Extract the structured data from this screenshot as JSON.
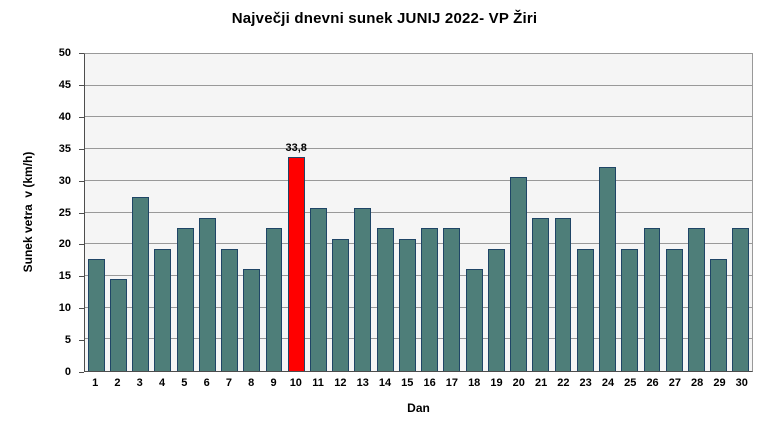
{
  "chart_data": {
    "type": "bar",
    "title": "Največji dnevni sunek JUNIJ 2022- VP Žiri",
    "xlabel": "Dan",
    "ylabel": "Sunek vetra  v (km/h)",
    "ylim": [
      0,
      50
    ],
    "yticks": [
      0,
      5,
      10,
      15,
      20,
      25,
      30,
      35,
      40,
      45,
      50
    ],
    "grid": "horizontal",
    "legend": "none",
    "categories": [
      "1",
      "2",
      "3",
      "4",
      "5",
      "6",
      "7",
      "8",
      "9",
      "10",
      "11",
      "12",
      "13",
      "14",
      "15",
      "16",
      "17",
      "18",
      "19",
      "20",
      "21",
      "22",
      "23",
      "24",
      "25",
      "26",
      "27",
      "28",
      "29",
      "30"
    ],
    "values": [
      17.7,
      14.5,
      27.4,
      19.3,
      22.5,
      24.1,
      19.3,
      16.1,
      22.5,
      33.8,
      25.7,
      20.9,
      25.7,
      22.5,
      20.9,
      22.5,
      22.5,
      16.1,
      19.3,
      30.6,
      24.1,
      24.1,
      19.3,
      32.2,
      19.3,
      22.5,
      19.3,
      22.5,
      17.7,
      22.5
    ],
    "highlight": {
      "category": "10",
      "index": 9,
      "value": 33.8,
      "data_label": "33,8"
    },
    "colors": {
      "bar_fill": "#4E7E79",
      "bar_border": "#1F4566",
      "highlight_fill": "#FF0000",
      "plot_background": "#F5F5F5",
      "gridline": "#999999",
      "axis_line": "#4d4d4d",
      "text": "#000000"
    }
  }
}
